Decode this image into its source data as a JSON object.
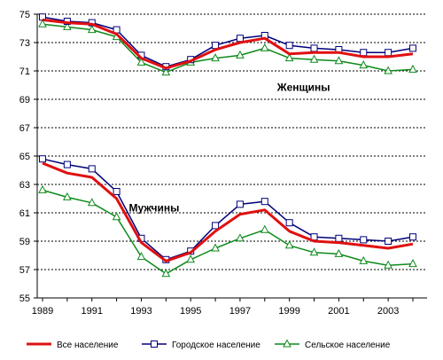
{
  "chart_data": {
    "type": "line",
    "x": [
      1989,
      1990,
      1991,
      1992,
      1993,
      1994,
      1995,
      1996,
      1997,
      1998,
      1999,
      2000,
      2001,
      2002,
      2003,
      2004
    ],
    "x_tick_labels": [
      "1989",
      "1991",
      "1993",
      "1995",
      "1997",
      "1999",
      "2001",
      "2003"
    ],
    "ylim": [
      55,
      75
    ],
    "y_ticks": [
      55,
      57,
      59,
      61,
      63,
      65,
      67,
      69,
      71,
      73,
      75
    ],
    "grid": "horizontal dotted",
    "legend_position": "bottom",
    "series": [
      {
        "name": "Все население",
        "group": "Женщины",
        "color": "#e01010",
        "marker": "none",
        "values": [
          74.6,
          74.4,
          74.3,
          73.6,
          71.9,
          71.2,
          71.7,
          72.5,
          73.0,
          73.3,
          72.2,
          72.3,
          72.3,
          72.0,
          72.0,
          72.2
        ]
      },
      {
        "name": "Городское население",
        "group": "Женщины",
        "color": "#00007a",
        "marker": "square",
        "values": [
          74.8,
          74.5,
          74.4,
          73.9,
          72.1,
          71.3,
          71.8,
          72.8,
          73.3,
          73.5,
          72.8,
          72.6,
          72.5,
          72.3,
          72.3,
          72.6
        ]
      },
      {
        "name": "Сельское население",
        "group": "Женщины",
        "color": "#0d8a1a",
        "marker": "triangle",
        "values": [
          74.3,
          74.1,
          73.9,
          73.4,
          71.6,
          70.9,
          71.6,
          71.9,
          72.1,
          72.6,
          71.9,
          71.8,
          71.7,
          71.4,
          71.0,
          71.1
        ]
      },
      {
        "name": "Все население",
        "group": "Мужчины",
        "color": "#e01010",
        "marker": "none",
        "values": [
          64.5,
          63.8,
          63.5,
          62.0,
          58.9,
          57.6,
          58.2,
          59.7,
          60.9,
          61.2,
          59.7,
          59.0,
          58.9,
          58.7,
          58.5,
          58.8
        ]
      },
      {
        "name": "Городское население",
        "group": "Мужчины",
        "color": "#00007a",
        "marker": "square",
        "values": [
          64.8,
          64.4,
          64.1,
          62.5,
          59.2,
          57.7,
          58.3,
          60.1,
          61.6,
          61.8,
          60.3,
          59.3,
          59.2,
          59.1,
          59.0,
          59.3
        ]
      },
      {
        "name": "Сельское население",
        "group": "Мужчины",
        "color": "#0d8a1a",
        "marker": "triangle",
        "values": [
          62.6,
          62.1,
          61.7,
          60.7,
          57.9,
          56.7,
          57.7,
          58.5,
          59.2,
          59.8,
          58.7,
          58.2,
          58.1,
          57.6,
          57.3,
          57.4
        ]
      }
    ],
    "annotations": [
      {
        "text": "Женщины",
        "x": 1998.5,
        "y": 69.6
      },
      {
        "text": "Мужчины",
        "x": 1992.5,
        "y": 61.1
      }
    ],
    "legend": [
      {
        "label": "Все население",
        "color": "#e01010",
        "marker": "none"
      },
      {
        "label": "Городское население",
        "color": "#00007a",
        "marker": "square"
      },
      {
        "label": "Сельское население",
        "color": "#0d8a1a",
        "marker": "triangle"
      }
    ]
  }
}
